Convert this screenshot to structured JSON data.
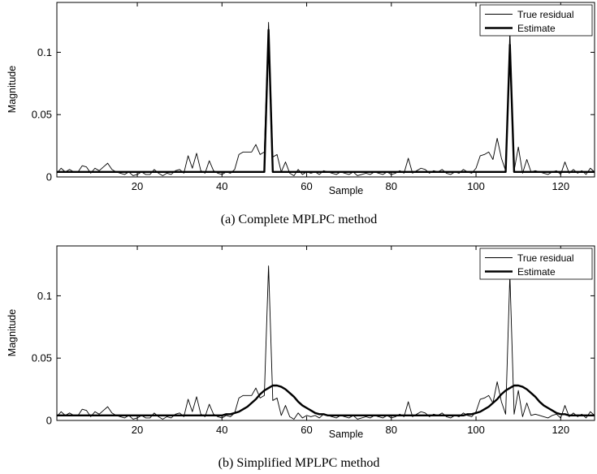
{
  "figure": {
    "panels": [
      {
        "caption": "(a) Complete MPLPC method",
        "xlabel": "Sample",
        "ylabel": "Magnitude",
        "legend": [
          "True residual",
          "Estimate"
        ]
      },
      {
        "caption": "(b) Simplified MPLPC method",
        "xlabel": "Sample",
        "ylabel": "Magnitude",
        "legend": [
          "True residual",
          "Estimate"
        ]
      }
    ]
  },
  "chart_data": [
    {
      "type": "line",
      "title": "",
      "caption": "(a) Complete MPLPC method",
      "xlabel": "Sample",
      "ylabel": "Magnitude",
      "xlim": [
        1,
        128
      ],
      "ylim": [
        0,
        0.14
      ],
      "xticks": [
        20,
        40,
        60,
        80,
        100,
        120
      ],
      "yticks": [
        0,
        0.05,
        0.1
      ],
      "ytick_labels": [
        "0",
        "0.05",
        "0.1"
      ],
      "grid": false,
      "legend_position": "top-right",
      "series": [
        {
          "name": "True residual",
          "style": "thin",
          "x": [
            1,
            2,
            3,
            4,
            5,
            6,
            7,
            8,
            9,
            10,
            11,
            12,
            13,
            14,
            15,
            16,
            17,
            18,
            19,
            20,
            21,
            22,
            23,
            24,
            25,
            26,
            27,
            28,
            29,
            30,
            31,
            32,
            33,
            34,
            35,
            36,
            37,
            38,
            39,
            40,
            41,
            42,
            43,
            44,
            45,
            46,
            47,
            48,
            49,
            50,
            51,
            52,
            53,
            54,
            55,
            56,
            57,
            58,
            59,
            60,
            61,
            62,
            63,
            64,
            65,
            66,
            67,
            68,
            69,
            70,
            71,
            72,
            73,
            74,
            75,
            76,
            77,
            78,
            79,
            80,
            81,
            82,
            83,
            84,
            85,
            86,
            87,
            88,
            89,
            90,
            91,
            92,
            93,
            94,
            95,
            96,
            97,
            98,
            99,
            100,
            101,
            102,
            103,
            104,
            105,
            106,
            107,
            108,
            109,
            110,
            111,
            112,
            113,
            114,
            115,
            116,
            117,
            118,
            119,
            120,
            121,
            122,
            123,
            124,
            125,
            126,
            127,
            128
          ],
          "y": [
            0.003,
            0.007,
            0.004,
            0.006,
            0.004,
            0.004,
            0.009,
            0.008,
            0.003,
            0.007,
            0.005,
            0.008,
            0.011,
            0.006,
            0.004,
            0.003,
            0.002,
            0.004,
            0.001,
            0.002,
            0.004,
            0.002,
            0.002,
            0.006,
            0.003,
            0.001,
            0.003,
            0.002,
            0.005,
            0.006,
            0.003,
            0.017,
            0.007,
            0.019,
            0.005,
            0.003,
            0.013,
            0.005,
            0.003,
            0.002,
            0.004,
            0.003,
            0.006,
            0.018,
            0.02,
            0.02,
            0.02,
            0.026,
            0.018,
            0.02,
            0.124,
            0.016,
            0.018,
            0.004,
            0.012,
            0.003,
            0.001,
            0.006,
            0.002,
            0.004,
            0.003,
            0.004,
            0.002,
            0.005,
            0.004,
            0.003,
            0.002,
            0.004,
            0.003,
            0.002,
            0.004,
            0.001,
            0.002,
            0.003,
            0.002,
            0.004,
            0.003,
            0.002,
            0.004,
            0.002,
            0.003,
            0.005,
            0.003,
            0.015,
            0.003,
            0.005,
            0.007,
            0.006,
            0.003,
            0.005,
            0.004,
            0.006,
            0.003,
            0.002,
            0.004,
            0.003,
            0.006,
            0.004,
            0.003,
            0.007,
            0.017,
            0.018,
            0.02,
            0.014,
            0.031,
            0.015,
            0.005,
            0.117,
            0.005,
            0.024,
            0.003,
            0.014,
            0.004,
            0.005,
            0.004,
            0.003,
            0.002,
            0.004,
            0.005,
            0.002,
            0.012,
            0.003,
            0.006,
            0.003,
            0.005,
            0.002,
            0.007,
            0.004
          ]
        },
        {
          "name": "Estimate",
          "style": "thick",
          "x": [
            1,
            49,
            50,
            51,
            52,
            53,
            106,
            107,
            108,
            109,
            110,
            128
          ],
          "y": [
            0.004,
            0.004,
            0.004,
            0.118,
            0.004,
            0.004,
            0.004,
            0.004,
            0.106,
            0.004,
            0.004,
            0.004
          ]
        }
      ]
    },
    {
      "type": "line",
      "title": "",
      "caption": "(b) Simplified MPLPC method",
      "xlabel": "Sample",
      "ylabel": "Magnitude",
      "xlim": [
        1,
        128
      ],
      "ylim": [
        0,
        0.14
      ],
      "xticks": [
        20,
        40,
        60,
        80,
        100,
        120
      ],
      "yticks": [
        0,
        0.05,
        0.1
      ],
      "ytick_labels": [
        "0",
        "0.05",
        "0.1"
      ],
      "grid": false,
      "legend_position": "top-right",
      "series": [
        {
          "name": "True residual",
          "style": "thin",
          "x": [
            1,
            2,
            3,
            4,
            5,
            6,
            7,
            8,
            9,
            10,
            11,
            12,
            13,
            14,
            15,
            16,
            17,
            18,
            19,
            20,
            21,
            22,
            23,
            24,
            25,
            26,
            27,
            28,
            29,
            30,
            31,
            32,
            33,
            34,
            35,
            36,
            37,
            38,
            39,
            40,
            41,
            42,
            43,
            44,
            45,
            46,
            47,
            48,
            49,
            50,
            51,
            52,
            53,
            54,
            55,
            56,
            57,
            58,
            59,
            60,
            61,
            62,
            63,
            64,
            65,
            66,
            67,
            68,
            69,
            70,
            71,
            72,
            73,
            74,
            75,
            76,
            77,
            78,
            79,
            80,
            81,
            82,
            83,
            84,
            85,
            86,
            87,
            88,
            89,
            90,
            91,
            92,
            93,
            94,
            95,
            96,
            97,
            98,
            99,
            100,
            101,
            102,
            103,
            104,
            105,
            106,
            107,
            108,
            109,
            110,
            111,
            112,
            113,
            114,
            115,
            116,
            117,
            118,
            119,
            120,
            121,
            122,
            123,
            124,
            125,
            126,
            127,
            128
          ],
          "y": [
            0.003,
            0.007,
            0.004,
            0.006,
            0.004,
            0.004,
            0.009,
            0.008,
            0.003,
            0.007,
            0.005,
            0.008,
            0.011,
            0.006,
            0.004,
            0.003,
            0.002,
            0.004,
            0.001,
            0.002,
            0.004,
            0.002,
            0.002,
            0.006,
            0.003,
            0.001,
            0.003,
            0.002,
            0.005,
            0.006,
            0.003,
            0.017,
            0.007,
            0.019,
            0.005,
            0.003,
            0.013,
            0.005,
            0.003,
            0.002,
            0.004,
            0.003,
            0.006,
            0.018,
            0.02,
            0.02,
            0.02,
            0.026,
            0.018,
            0.02,
            0.124,
            0.016,
            0.018,
            0.004,
            0.012,
            0.003,
            0.001,
            0.006,
            0.002,
            0.004,
            0.003,
            0.004,
            0.002,
            0.005,
            0.004,
            0.003,
            0.002,
            0.004,
            0.003,
            0.002,
            0.004,
            0.001,
            0.002,
            0.003,
            0.002,
            0.004,
            0.003,
            0.002,
            0.004,
            0.002,
            0.003,
            0.005,
            0.003,
            0.015,
            0.003,
            0.005,
            0.007,
            0.006,
            0.003,
            0.005,
            0.004,
            0.006,
            0.003,
            0.002,
            0.004,
            0.003,
            0.006,
            0.004,
            0.003,
            0.007,
            0.017,
            0.018,
            0.02,
            0.014,
            0.031,
            0.015,
            0.005,
            0.117,
            0.005,
            0.024,
            0.003,
            0.014,
            0.004,
            0.005,
            0.004,
            0.003,
            0.002,
            0.004,
            0.005,
            0.002,
            0.012,
            0.003,
            0.006,
            0.003,
            0.005,
            0.002,
            0.007,
            0.004
          ]
        },
        {
          "name": "Estimate",
          "style": "thick",
          "x": [
            1,
            2,
            3,
            4,
            5,
            6,
            7,
            8,
            9,
            10,
            11,
            12,
            13,
            14,
            15,
            16,
            17,
            18,
            19,
            20,
            21,
            22,
            23,
            24,
            25,
            26,
            27,
            28,
            29,
            30,
            31,
            32,
            33,
            34,
            35,
            36,
            37,
            38,
            39,
            40,
            41,
            42,
            43,
            44,
            45,
            46,
            47,
            48,
            49,
            50,
            51,
            52,
            53,
            54,
            55,
            56,
            57,
            58,
            59,
            60,
            61,
            62,
            63,
            64,
            65,
            66,
            67,
            68,
            69,
            70,
            71,
            72,
            73,
            74,
            75,
            76,
            77,
            78,
            79,
            80,
            81,
            82,
            83,
            84,
            85,
            86,
            87,
            88,
            89,
            90,
            91,
            92,
            93,
            94,
            95,
            96,
            97,
            98,
            99,
            100,
            101,
            102,
            103,
            104,
            105,
            106,
            107,
            108,
            109,
            110,
            111,
            112,
            113,
            114,
            115,
            116,
            117,
            118,
            119,
            120,
            121,
            122,
            123,
            124,
            125,
            126,
            127,
            128
          ],
          "y": [
            0.004,
            0.004,
            0.004,
            0.004,
            0.004,
            0.004,
            0.004,
            0.004,
            0.004,
            0.004,
            0.004,
            0.004,
            0.004,
            0.004,
            0.004,
            0.004,
            0.004,
            0.004,
            0.004,
            0.004,
            0.004,
            0.004,
            0.004,
            0.004,
            0.004,
            0.004,
            0.004,
            0.004,
            0.004,
            0.004,
            0.004,
            0.004,
            0.004,
            0.004,
            0.004,
            0.004,
            0.004,
            0.004,
            0.004,
            0.004,
            0.005,
            0.005,
            0.006,
            0.007,
            0.009,
            0.011,
            0.014,
            0.017,
            0.021,
            0.024,
            0.026,
            0.028,
            0.028,
            0.027,
            0.025,
            0.022,
            0.019,
            0.015,
            0.012,
            0.01,
            0.008,
            0.006,
            0.005,
            0.005,
            0.004,
            0.004,
            0.004,
            0.004,
            0.004,
            0.004,
            0.004,
            0.004,
            0.004,
            0.004,
            0.004,
            0.004,
            0.004,
            0.004,
            0.004,
            0.004,
            0.004,
            0.004,
            0.004,
            0.004,
            0.004,
            0.004,
            0.004,
            0.004,
            0.004,
            0.004,
            0.004,
            0.004,
            0.004,
            0.004,
            0.004,
            0.004,
            0.004,
            0.005,
            0.005,
            0.006,
            0.007,
            0.009,
            0.011,
            0.014,
            0.017,
            0.021,
            0.024,
            0.026,
            0.028,
            0.028,
            0.027,
            0.025,
            0.022,
            0.019,
            0.015,
            0.012,
            0.01,
            0.008,
            0.006,
            0.005,
            0.005,
            0.004,
            0.004,
            0.004,
            0.004,
            0.004,
            0.004,
            0.004
          ]
        }
      ]
    }
  ]
}
